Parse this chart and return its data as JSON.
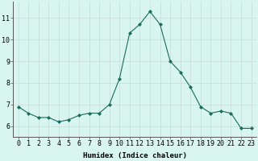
{
  "x": [
    0,
    1,
    2,
    3,
    4,
    5,
    6,
    7,
    8,
    9,
    10,
    11,
    12,
    13,
    14,
    15,
    16,
    17,
    18,
    19,
    20,
    21,
    22,
    23
  ],
  "y": [
    6.9,
    6.6,
    6.4,
    6.4,
    6.2,
    6.3,
    6.5,
    6.6,
    6.6,
    7.0,
    8.2,
    10.3,
    10.7,
    11.3,
    10.7,
    9.0,
    8.5,
    7.8,
    6.9,
    6.6,
    6.7,
    6.6,
    5.9,
    5.9
  ],
  "line_color": "#1a6b5a",
  "marker": "D",
  "marker_size": 2.0,
  "bg_color": "#d8f5f0",
  "grid_color": "#c8dbd8",
  "xlabel": "Humidex (Indice chaleur)",
  "ylabel_ticks": [
    6,
    7,
    8,
    9,
    10,
    11
  ],
  "xlim": [
    -0.5,
    23.5
  ],
  "ylim": [
    5.5,
    11.75
  ],
  "xtick_labels": [
    "0",
    "1",
    "2",
    "3",
    "4",
    "5",
    "6",
    "7",
    "8",
    "9",
    "10",
    "11",
    "12",
    "13",
    "14",
    "15",
    "16",
    "17",
    "18",
    "19",
    "20",
    "21",
    "22",
    "23"
  ],
  "label_fontsize": 6.5,
  "tick_fontsize": 6.0
}
